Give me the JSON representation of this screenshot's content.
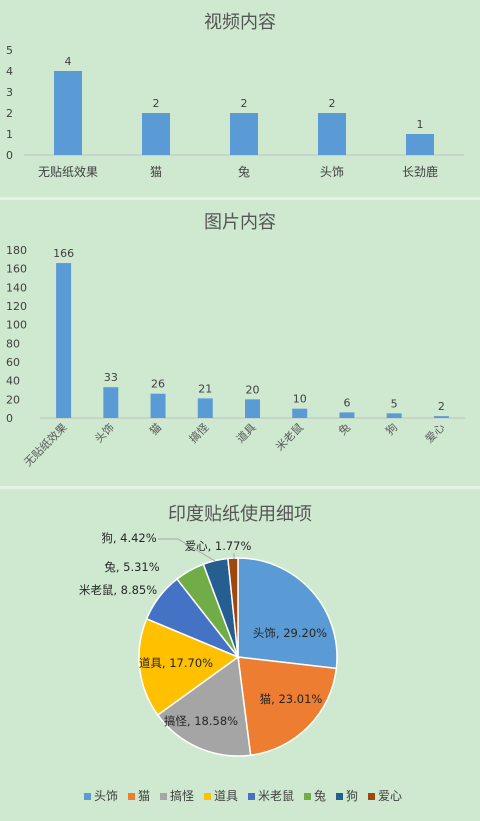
{
  "colors": {
    "background": "#cfe9d0",
    "bar": "#5b9bd5",
    "pie": [
      "#5b9bd5",
      "#ed7d31",
      "#a5a5a5",
      "#ffc000",
      "#4472c4",
      "#70ad47",
      "#255e91",
      "#9e480e"
    ]
  },
  "chart_data": [
    {
      "type": "bar",
      "title": "视频内容",
      "categories": [
        "无贴纸效果",
        "猫",
        "兔",
        "头饰",
        "长劲鹿"
      ],
      "values": [
        4,
        2,
        2,
        2,
        1
      ],
      "ylim": [
        0,
        5
      ],
      "yticks": [
        "0",
        "1",
        "2",
        "3",
        "4",
        "5"
      ],
      "grid": false
    },
    {
      "type": "bar",
      "title": "图片内容",
      "categories": [
        "无贴纸效果",
        "头饰",
        "猫",
        "搞怪",
        "道具",
        "米老鼠",
        "兔",
        "狗",
        "爱心"
      ],
      "values": [
        166,
        33,
        26,
        21,
        20,
        10,
        6,
        5,
        2
      ],
      "ylim": [
        0,
        180
      ],
      "yticks": [
        "0",
        "20",
        "40",
        "60",
        "80",
        "100",
        "120",
        "140",
        "160",
        "180"
      ],
      "grid": false
    },
    {
      "type": "pie",
      "title": "印度贴纸使用细项",
      "categories": [
        "头饰",
        "猫",
        "搞怪",
        "道具",
        "米老鼠",
        "兔",
        "狗",
        "爱心"
      ],
      "values": [
        29.2,
        23.01,
        18.58,
        17.7,
        8.85,
        5.31,
        4.42,
        1.77
      ],
      "labels": [
        "头饰, 29.20%",
        "猫, 23.01%",
        "搞怪, 18.58%",
        "道具, 17.70%",
        "米老鼠, 8.85%",
        "兔, 5.31%",
        "狗, 4.42%",
        "爱心, 1.77%"
      ],
      "legend": "bottom"
    }
  ]
}
